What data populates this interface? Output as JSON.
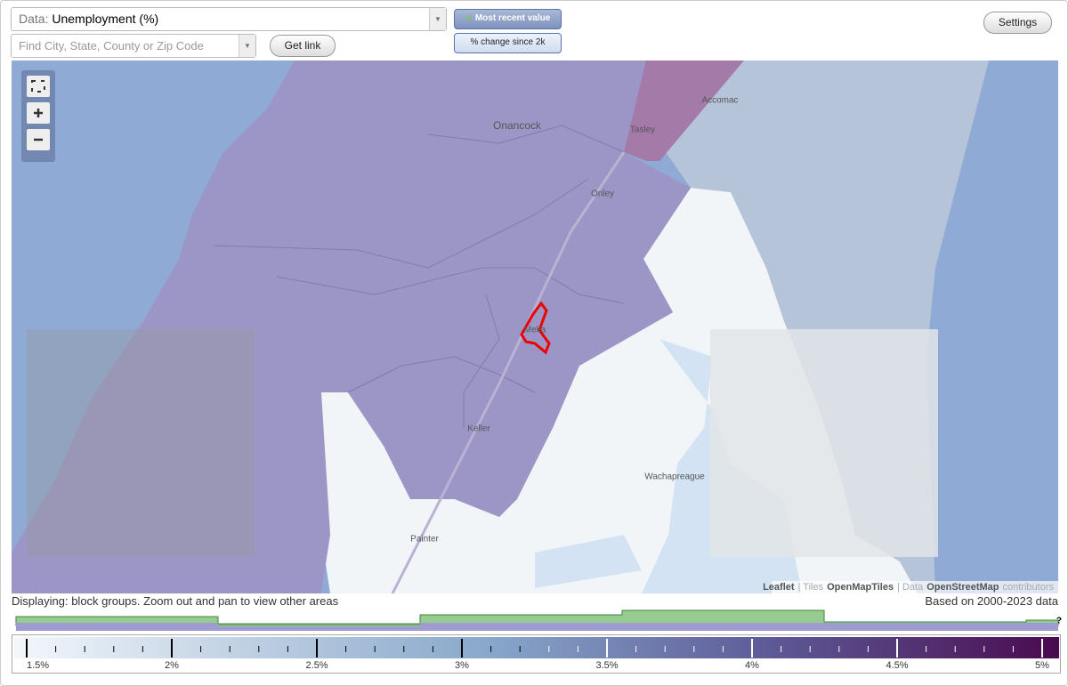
{
  "toolbar": {
    "data_label": "Data:",
    "data_value": "Unemployment (%)",
    "search_placeholder": "Find City, State, County or Zip Code",
    "get_link": "Get link",
    "most_recent": "Most recent value",
    "change_since": "% change since 2k",
    "settings": "Settings"
  },
  "map": {
    "places": [
      "Onancock",
      "Tasley",
      "Accomac",
      "Onley",
      "Melfa",
      "Keller",
      "Wachapreague",
      "Painter"
    ],
    "attribution": [
      "Leaflet",
      "| Tiles",
      "OpenMapTiles",
      "| Data",
      "OpenStreetMap",
      "contributors"
    ]
  },
  "footer": {
    "displaying": "Displaying: block groups. Zoom out and pan to view other areas",
    "based_on": "Based on 2000-2023 data"
  },
  "legend": {
    "labels": [
      "1.5%",
      "2%",
      "2.5%",
      "3%",
      "3.5%",
      "4%",
      "4.5%",
      "5%"
    ],
    "help": "?"
  }
}
